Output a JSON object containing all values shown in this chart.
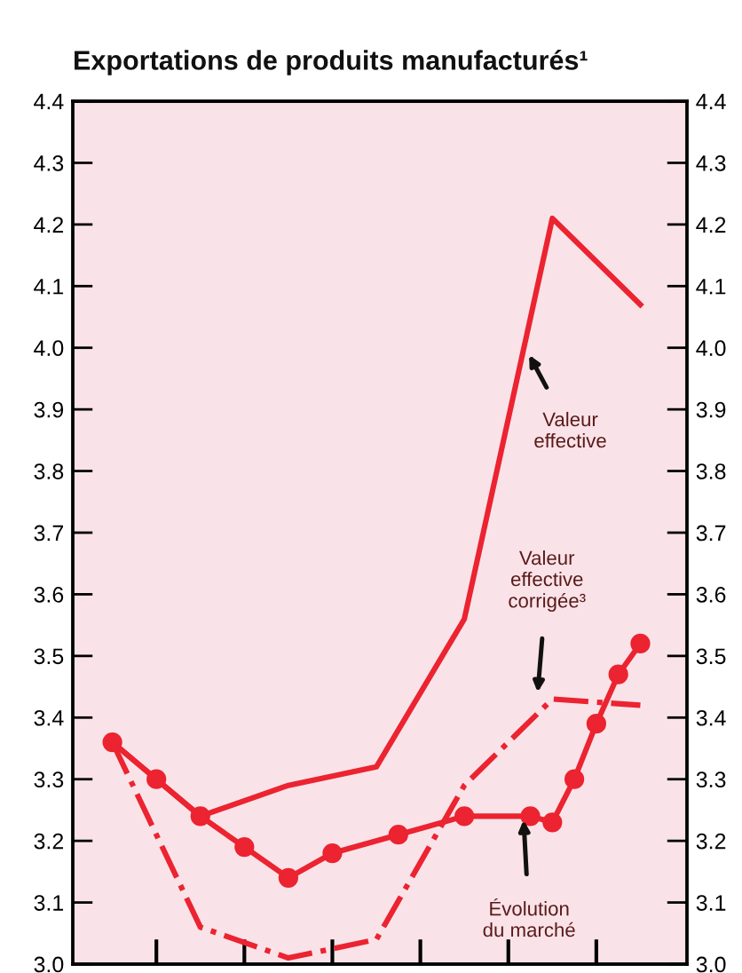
{
  "chart_data": {
    "type": "line",
    "title": "Exportations de produits manufacturés¹",
    "categories": [
      null,
      null,
      null,
      null,
      null,
      null,
      null,
      null,
      null,
      null,
      null,
      null,
      null,
      null,
      null,
      null,
      null,
      null,
      null,
      null,
      null,
      null,
      null,
      null,
      null
    ],
    "ylim": [
      3.0,
      4.4
    ],
    "yticks": [
      {
        "value": 3,
        "label": "3.0"
      },
      3.1,
      3.2,
      3.3,
      3.4,
      3.5,
      3.6,
      3.7,
      3.8,
      3.9,
      {
        "value": 4,
        "label": "4.0"
      },
      4.1,
      4.2,
      4.3,
      4.4
    ],
    "y2lim": [
      3.0,
      4.4
    ],
    "y2ticks": [
      {
        "value": 3,
        "label": "3.0"
      },
      3.1,
      3.2,
      3.3,
      3.4,
      3.5,
      3.6,
      3.7,
      3.8,
      3.9,
      {
        "value": 4,
        "label": "4.0"
      },
      4.1,
      4.2,
      4.3,
      4.4
    ],
    "series": [
      {
        "color": "#ec2330",
        "line_style": "solid",
        "marker": "none",
        "values": [
          3.36,
          null,
          null,
          null,
          3.24,
          null,
          null,
          null,
          3.29,
          null,
          null,
          null,
          3.32,
          null,
          null,
          null,
          3.56,
          null,
          null,
          null,
          4.21,
          null,
          null,
          null,
          4.07
        ]
      },
      {
        "color": "#ec2330",
        "line_style": "solid",
        "marker": "circle",
        "values": [
          3.36,
          null,
          3.3,
          null,
          3.24,
          null,
          3.19,
          null,
          3.14,
          null,
          3.18,
          null,
          null,
          3.21,
          null,
          null,
          3.24,
          null,
          null,
          3.24,
          3.23,
          3.3,
          3.39,
          3.47,
          3.52
        ]
      },
      {
        "color": "#ec2330",
        "line_style": "dashdot",
        "marker": "none",
        "values": [
          3.36,
          null,
          null,
          null,
          3.06,
          null,
          null,
          null,
          3.01,
          null,
          null,
          null,
          3.04,
          null,
          null,
          null,
          3.29,
          null,
          null,
          null,
          3.43,
          null,
          null,
          null,
          3.42
        ]
      }
    ],
    "annotations": [
      "Valeur\neffective",
      "Valeur\neffective\ncorrigée³",
      "Évolution\ndu marché"
    ]
  }
}
